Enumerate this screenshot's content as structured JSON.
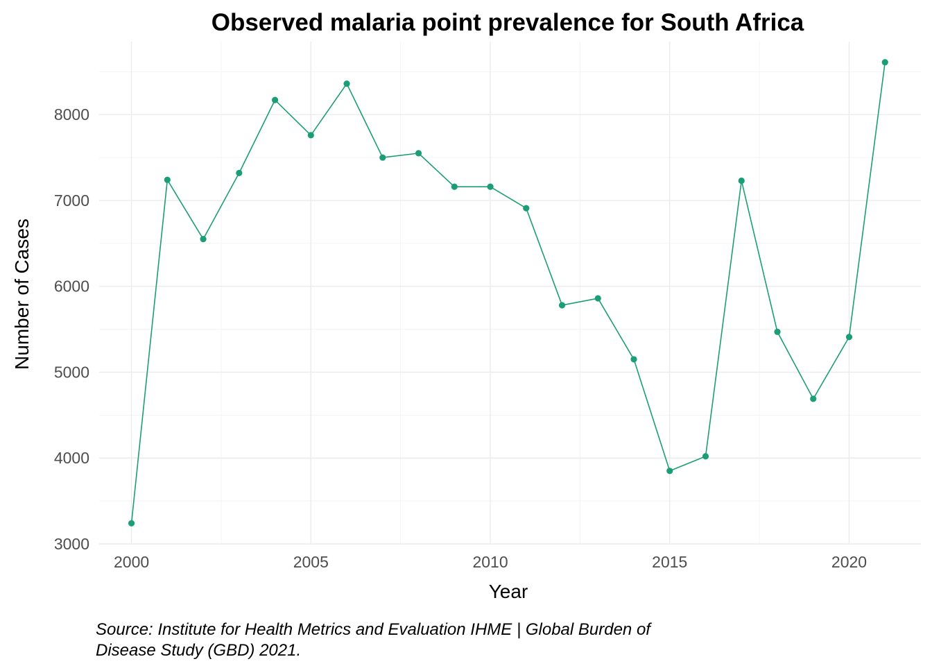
{
  "chart_data": {
    "type": "line",
    "title": "Observed malaria point prevalence for South Africa",
    "xlabel": "Year",
    "ylabel": "Number of Cases",
    "caption_lines": [
      "Source: Institute for Health Metrics and Evaluation IHME | Global Burden of",
      "Disease Study (GBD) 2021."
    ],
    "x": [
      2000,
      2001,
      2002,
      2003,
      2004,
      2005,
      2006,
      2007,
      2008,
      2009,
      2010,
      2011,
      2012,
      2013,
      2014,
      2015,
      2016,
      2017,
      2018,
      2019,
      2020,
      2021
    ],
    "series": [
      {
        "values": [
          3240,
          7240,
          6550,
          7320,
          8170,
          7760,
          8360,
          7500,
          7550,
          7160,
          7160,
          6910,
          5780,
          5860,
          5150,
          3850,
          4020,
          7230,
          5470,
          4690,
          5410,
          8610
        ]
      }
    ],
    "xlim": [
      1999.1,
      2022.0
    ],
    "ylim": [
      3000,
      8850
    ],
    "x_ticks": [
      2000,
      2005,
      2010,
      2015,
      2020
    ],
    "y_ticks": [
      3000,
      4000,
      5000,
      6000,
      7000,
      8000
    ],
    "grid": true,
    "legend": "none",
    "line_color": "#1b9e77"
  }
}
